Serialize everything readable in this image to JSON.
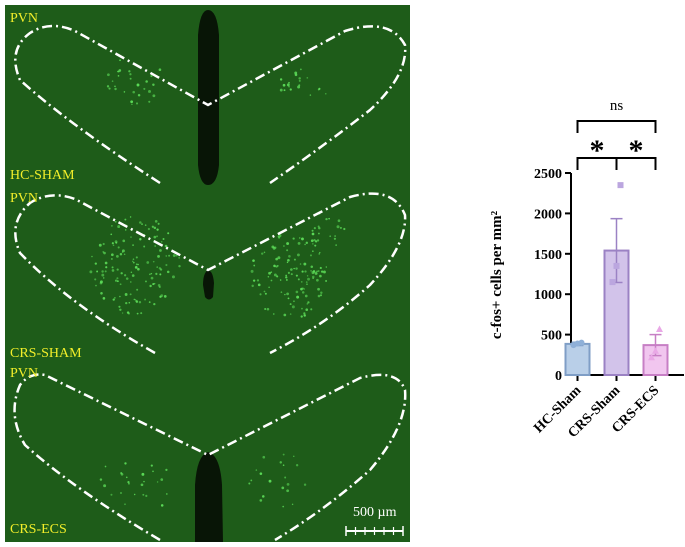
{
  "panels": [
    {
      "top_label": "PVN",
      "bottom_label": "HC-SHAM"
    },
    {
      "top_label": "PVN",
      "bottom_label": "CRS-SHAM"
    },
    {
      "top_label": "PVN",
      "bottom_label": "CRS-ECS"
    }
  ],
  "scale_bar_label": "500 µm",
  "colors": {
    "tissue": "#1e5c19",
    "label": "#f2ee2a",
    "outline": "#ffffff",
    "cells": "#5ee05a"
  },
  "chart_data": {
    "type": "bar",
    "categories": [
      "HC-Sham",
      "CRS-Sham",
      "CRS-ECS"
    ],
    "values": [
      385,
      1540,
      370
    ],
    "errors": [
      20,
      395,
      130
    ],
    "points": [
      [
        370,
        390,
        400
      ],
      [
        1150,
        1350,
        2350
      ],
      [
        220,
        300,
        570
      ]
    ],
    "bar_fill": [
      "#b9cfe8",
      "#d2c3ea",
      "#f1c6ef"
    ],
    "bar_stroke": [
      "#7f9ec6",
      "#9b82c4",
      "#c77fc5"
    ],
    "point_color": [
      "#8fb0d8",
      "#bba6df",
      "#e9a8e6"
    ],
    "ylabel": "c-fos+ cells per mm²",
    "ylim": [
      0,
      2500
    ],
    "yticks": [
      0,
      500,
      1000,
      1500,
      2000,
      2500
    ],
    "significance": [
      {
        "from": 0,
        "to": 1,
        "label": "*"
      },
      {
        "from": 1,
        "to": 2,
        "label": "*"
      },
      {
        "from": 0,
        "to": 2,
        "label": "ns"
      }
    ]
  }
}
